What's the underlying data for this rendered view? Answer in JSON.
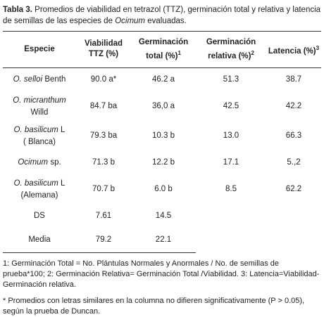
{
  "title": {
    "label": "Tabla 3.",
    "text": "Promedios de viabilidad en tetrazol (TTZ), germinación total y relativa y latencia de semillas de las especies de",
    "italic": "Ocimum",
    "end": "evaluadas."
  },
  "table": {
    "headers": [
      {
        "text": "Especie"
      },
      {
        "text": "Viabilidad TTZ (%)"
      },
      {
        "text": "Germinación total (%)",
        "sup": "1"
      },
      {
        "text": "Germinación relativa (%)",
        "sup": "2"
      },
      {
        "text": "Latencia (%)",
        "sup": "3"
      }
    ],
    "rows": [
      [
        {
          "italic": "O. selloi",
          "plain": "Benth"
        },
        "90.0 a*",
        "46.2 a",
        "51.3",
        "38.7"
      ],
      [
        {
          "italic": "O. micranthum",
          "note": "Willd"
        },
        "84.7 ba",
        "36,0 a",
        "42.5",
        "42.2"
      ],
      [
        {
          "italic": "O. basilicum",
          "plain": "L",
          "note": "( Blanca)"
        },
        "79.3 ba",
        "10.3 b",
        "13.0",
        "66.3"
      ],
      [
        {
          "italic": "Ocimum",
          "plain": "sp."
        },
        "71.3 b",
        "12.2 b",
        "17.1",
        "5.,2"
      ],
      [
        {
          "italic": "O. basilicum",
          "plain": "L",
          "note": "(Alemana)"
        },
        "70.7 b",
        "6.0 b",
        "8.5",
        "62.2"
      ],
      [
        "DS",
        "7.61",
        "14.5"
      ],
      [
        "Media",
        "79.2",
        "22.1"
      ]
    ]
  },
  "footnotes": [
    "1: Germinación Total  = No. Plántulas Normales y Anormales / No. de semillas de prueba*100; 2: Germinación Relativa= Germinación Total /Viabilidad. 3: Latencia=Viabilidad-Germinación relativa.",
    "* Promedios con letras similares en la columna no difieren significativamente (P > 0.05), según la prueba de Duncan."
  ]
}
